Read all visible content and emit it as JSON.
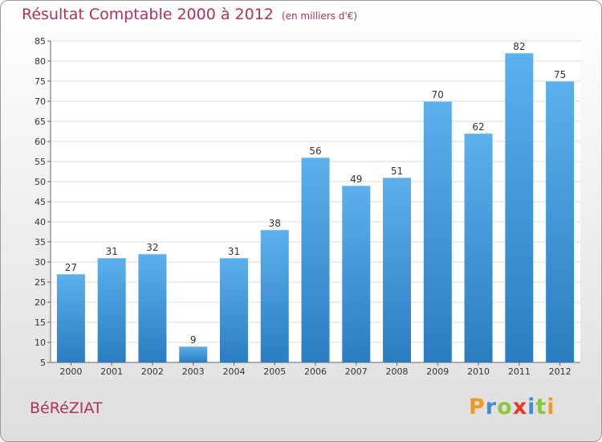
{
  "header": {
    "title": "Résultat Comptable 2000 à 2012",
    "unit": "(en milliers d'€)"
  },
  "footer": {
    "commune": "BéRéZIAT",
    "logo_letters": [
      "P",
      "r",
      "o",
      "x",
      "i",
      "t",
      "i"
    ]
  },
  "colors": {
    "bar_top": "#5cb0ec",
    "bar_bottom": "#2a7dc0",
    "title": "#b0325a"
  },
  "chart_data": {
    "type": "bar",
    "categories": [
      "2000",
      "2001",
      "2002",
      "2003",
      "2004",
      "2005",
      "2006",
      "2007",
      "2008",
      "2009",
      "2010",
      "2011",
      "2012"
    ],
    "values": [
      27,
      31,
      32,
      9,
      31,
      38,
      56,
      49,
      51,
      70,
      62,
      82,
      75
    ],
    "title": "Résultat Comptable 2000 à 2012",
    "ylim": [
      5,
      85
    ],
    "yticks": [
      5,
      10,
      15,
      20,
      25,
      30,
      35,
      40,
      45,
      50,
      55,
      60,
      65,
      70,
      75,
      80,
      85
    ],
    "grid": true,
    "data_labels": true
  }
}
